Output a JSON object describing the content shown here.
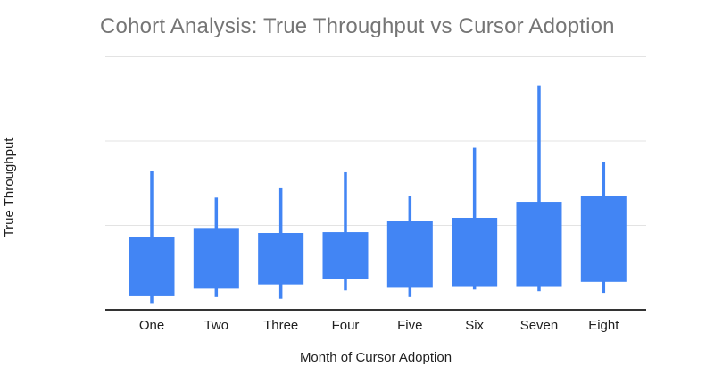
{
  "chart_data": {
    "type": "candlestick",
    "title": "Cohort Analysis: True Throughput vs Cursor Adoption",
    "xlabel": "Month of Cursor Adoption",
    "ylabel": "True Throughput",
    "categories": [
      "One",
      "Two",
      "Three",
      "Four",
      "Five",
      "Six",
      "Seven",
      "Eight"
    ],
    "y_axis_tick_labels_shown": false,
    "value_units": "gridline-units (baseline=0, one gridline interval=1)",
    "ylim": [
      0,
      3
    ],
    "gridline_values": [
      1,
      2,
      3
    ],
    "grid": true,
    "legend": "none",
    "series": [
      {
        "name": "True Throughput",
        "candles": [
          {
            "category": "One",
            "low": 0.08,
            "open": 0.17,
            "close": 0.86,
            "high": 1.65
          },
          {
            "category": "Two",
            "low": 0.15,
            "open": 0.25,
            "close": 0.97,
            "high": 1.33
          },
          {
            "category": "Three",
            "low": 0.13,
            "open": 0.3,
            "close": 0.91,
            "high": 1.44
          },
          {
            "category": "Four",
            "low": 0.23,
            "open": 0.36,
            "close": 0.92,
            "high": 1.63
          },
          {
            "category": "Five",
            "low": 0.15,
            "open": 0.26,
            "close": 1.05,
            "high": 1.35
          },
          {
            "category": "Six",
            "low": 0.24,
            "open": 0.28,
            "close": 1.09,
            "high": 1.92
          },
          {
            "category": "Seven",
            "low": 0.22,
            "open": 0.28,
            "close": 1.28,
            "high": 2.66
          },
          {
            "category": "Eight",
            "low": 0.2,
            "open": 0.33,
            "close": 1.35,
            "high": 1.75
          }
        ]
      }
    ],
    "colors": {
      "candle": "#4285F4",
      "gridline": "#E3E3E3",
      "axis_line": "#333333",
      "title_text": "#757575",
      "axis_text": "#1F1F1F"
    }
  }
}
